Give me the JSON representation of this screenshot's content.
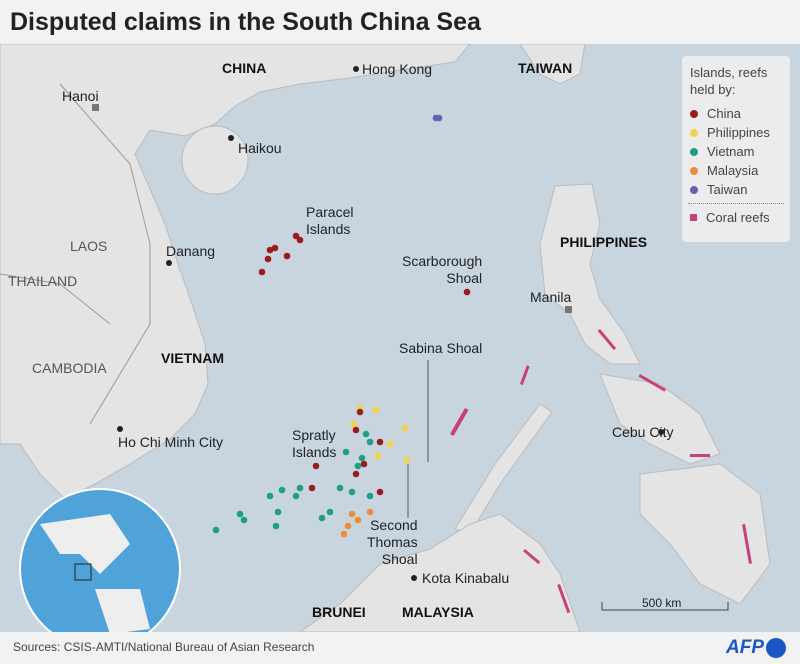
{
  "title": "Disputed claims in the South China Sea",
  "legend": {
    "heading": "Islands, reefs held by:",
    "items": [
      {
        "label": "China",
        "color": "#9b1c1f"
      },
      {
        "label": "Philippines",
        "color": "#f3d34a"
      },
      {
        "label": "Vietnam",
        "color": "#1f9e86"
      },
      {
        "label": "Malaysia",
        "color": "#ee8c3a"
      },
      {
        "label": "Taiwan",
        "color": "#6a5fb0"
      }
    ],
    "coral": {
      "label": "Coral reefs",
      "color": "#c8407a"
    }
  },
  "countries": {
    "china": "CHINA",
    "taiwan": "TAIWAN",
    "laos": "LAOS",
    "thailand": "THAILAND",
    "cambodia": "CAMBODIA",
    "vietnam": "VIETNAM",
    "philippines": "PHILIPPINES",
    "brunei": "BRUNEI",
    "malaysia": "MALAYSIA"
  },
  "cities": {
    "hongkong": "Hong Kong",
    "hanoi": "Hanoi",
    "haikou": "Haikou",
    "danang": "Danang",
    "hcmc": "Ho Chi Minh City",
    "manila": "Manila",
    "cebu": "Cebu City",
    "kk": "Kota Kinabalu"
  },
  "features": {
    "paracel": "Paracel\nIslands",
    "scarborough": "Scarborough\nShoal",
    "sabina": "Sabina Shoal",
    "spratly": "Spratly\nIslands",
    "second_thomas": "Second\nThomas\nShoal"
  },
  "scale": "500 km",
  "footer": {
    "sources": "Sources: CSIS-AMTI/National Bureau of Asian Research",
    "logo": "AFP"
  },
  "colors": {
    "sea": "#c8d5df",
    "land": "#e4e4e4",
    "coral": "#c8407a"
  }
}
